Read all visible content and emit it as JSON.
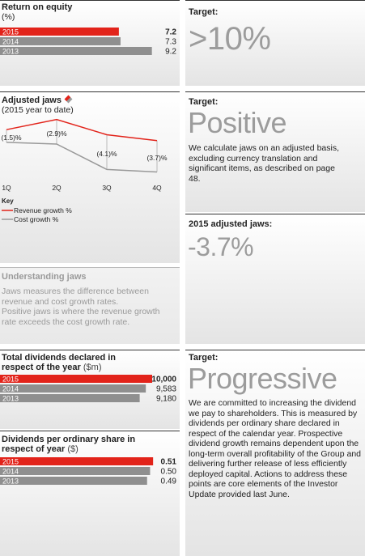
{
  "chart_data": [
    {
      "type": "hbar",
      "title": "Return on equity",
      "subtitle": "(%)",
      "categories": [
        "2015",
        "2014",
        "2013"
      ],
      "values": [
        7.2,
        7.3,
        9.2
      ],
      "colors": [
        "#e2231a",
        "#8f8f8f",
        "#8f8f8f"
      ],
      "xlim": [
        0,
        10
      ]
    },
    {
      "type": "line",
      "title": "Adjusted jaws",
      "subtitle": "(2015 year to date)",
      "categories": [
        "1Q",
        "2Q",
        "3Q",
        "4Q"
      ],
      "series": [
        {
          "name": "Revenue growth %",
          "color": "#e2231a",
          "values": [
            1.0,
            2.2,
            0.4,
            -0.3
          ]
        },
        {
          "name": "Cost growth %",
          "color": "#999999",
          "values": [
            -0.5,
            -0.7,
            -3.7,
            -4.0
          ]
        }
      ],
      "jaws": {
        "values": [
          -1.5,
          -2.9,
          -4.1,
          -3.7
        ],
        "value_labels": [
          "(1.5)%",
          "(2.9)%",
          "(4.1)%",
          "(3.7)%"
        ]
      },
      "ylim": [
        -5,
        3.5
      ],
      "legend_title": "Key"
    },
    {
      "type": "hbar",
      "title": "Total dividends declared in respect of the year",
      "subtitle": "($m)",
      "categories": [
        "2015",
        "2014",
        "2013"
      ],
      "values": [
        10000,
        9583,
        9180
      ],
      "value_labels": [
        "10,000",
        "9,583",
        "9,180"
      ],
      "colors": [
        "#e2231a",
        "#8f8f8f",
        "#8f8f8f"
      ],
      "xlim": [
        0,
        10850
      ]
    },
    {
      "type": "hbar",
      "title": "Dividends per ordinary share in respect of year",
      "subtitle": "($)",
      "categories": [
        "2015",
        "2014",
        "2013"
      ],
      "values": [
        0.51,
        0.5,
        0.49
      ],
      "value_labels": [
        "0.51",
        "0.50",
        "0.49"
      ],
      "colors": [
        "#e2231a",
        "#8f8f8f",
        "#8f8f8f"
      ],
      "xlim": [
        0,
        0.55
      ]
    }
  ],
  "panels": {
    "roe_target": {
      "label": "Target:",
      "value": ">10%"
    },
    "jaws_target": {
      "label": "Target:",
      "value": "Positive",
      "text": "We calculate jaws on an adjusted basis, excluding currency translation and significant items, as described on page 48."
    },
    "jaws_result": {
      "label": "2015 adjusted jaws:",
      "value": "-3.7%"
    },
    "understanding": {
      "title": "Understanding jaws",
      "paragraphs": [
        "Jaws measures the difference between revenue and cost growth rates.",
        "Positive jaws is where the revenue growth rate exceeds the cost growth rate."
      ]
    },
    "dividend_target": {
      "label": "Target:",
      "value": "Progressive",
      "text": "We are committed to increasing the dividend we pay to shareholders. This is measured by dividends per ordinary share declared in respect of the calendar year. Prospective dividend growth remains dependent upon the long-term overall profitability of the Group and delivering further release of less efficiently deployed capital. Actions to address these points are core elements of the Investor Update provided last June."
    }
  }
}
